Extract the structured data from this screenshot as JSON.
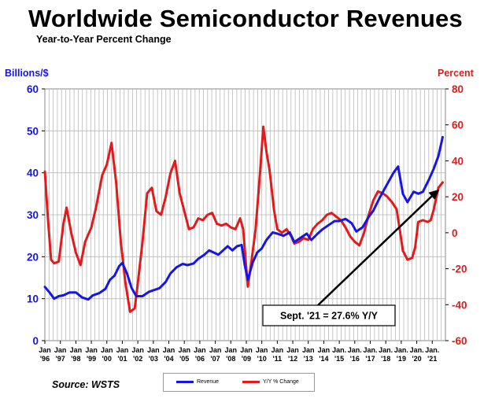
{
  "title": "Worldwide Semiconductor Revenues",
  "subtitle": "Year-to-Year Percent Change",
  "source": "Source: WSTS",
  "chart_data": {
    "type": "line",
    "title": "Worldwide Semiconductor Revenues",
    "subtitle": "Year-to-Year Percent Change",
    "y_left_label": "Billions/$",
    "y_right_label": "Percent",
    "y_left_range": [
      0,
      60
    ],
    "y_right_range": [
      -60,
      80
    ],
    "y_left_ticks": [
      "0",
      "10",
      "20",
      "30",
      "40",
      "50",
      "60"
    ],
    "y_right_ticks": [
      "-60",
      "-40",
      "-20",
      "0",
      "20",
      "40",
      "60",
      "80"
    ],
    "x_ticks": [
      [
        "Jan",
        "'96"
      ],
      [
        "Jan",
        "'97"
      ],
      [
        "Jan",
        "'98"
      ],
      [
        "Jan",
        "'99"
      ],
      [
        "Jan",
        "'00"
      ],
      [
        "Jan",
        "'01"
      ],
      [
        "Jan",
        "'02"
      ],
      [
        "Jan",
        "'03"
      ],
      [
        "Jan",
        "'04"
      ],
      [
        "Jan",
        "'05"
      ],
      [
        "Jan",
        "'06"
      ],
      [
        "Jan",
        "'07"
      ],
      [
        "Jan",
        "'08"
      ],
      [
        "Jan",
        "'09"
      ],
      [
        "Jan",
        "'10"
      ],
      [
        "Jan",
        "'11"
      ],
      [
        "Jan",
        "'12"
      ],
      [
        "Jan",
        "'13"
      ],
      [
        "Jan",
        "'14"
      ],
      [
        "Jan.",
        "'15"
      ],
      [
        "Jan.",
        "'16"
      ],
      [
        "Jan.",
        "'17"
      ],
      [
        "Jan.",
        "'18"
      ],
      [
        "Jan.",
        "'19"
      ],
      [
        "Jan.",
        "'20"
      ],
      [
        "Jan.",
        "'21"
      ]
    ],
    "grid": true,
    "legend_position": "bottom",
    "series": [
      {
        "name": "Revenue",
        "axis": "left",
        "color": "#1515e6",
        "points": [
          [
            1996.0,
            12.8
          ],
          [
            1996.3,
            11.5
          ],
          [
            1996.6,
            10.0
          ],
          [
            1996.9,
            10.6
          ],
          [
            1997.2,
            10.8
          ],
          [
            1997.6,
            11.5
          ],
          [
            1998.0,
            11.5
          ],
          [
            1998.4,
            10.3
          ],
          [
            1998.8,
            9.8
          ],
          [
            1999.1,
            10.8
          ],
          [
            1999.5,
            11.3
          ],
          [
            1999.9,
            12.3
          ],
          [
            2000.2,
            14.5
          ],
          [
            2000.5,
            15.5
          ],
          [
            2000.8,
            17.8
          ],
          [
            2001.0,
            18.5
          ],
          [
            2001.3,
            16.0
          ],
          [
            2001.6,
            12.5
          ],
          [
            2001.9,
            10.6
          ],
          [
            2002.3,
            10.6
          ],
          [
            2002.7,
            11.6
          ],
          [
            2003.0,
            12.0
          ],
          [
            2003.4,
            12.5
          ],
          [
            2003.8,
            14.0
          ],
          [
            2004.1,
            16.0
          ],
          [
            2004.5,
            17.5
          ],
          [
            2004.9,
            18.3
          ],
          [
            2005.2,
            18.0
          ],
          [
            2005.6,
            18.4
          ],
          [
            2005.9,
            19.5
          ],
          [
            2006.3,
            20.5
          ],
          [
            2006.6,
            21.5
          ],
          [
            2006.9,
            21.0
          ],
          [
            2007.2,
            20.5
          ],
          [
            2007.5,
            21.5
          ],
          [
            2007.8,
            22.5
          ],
          [
            2008.1,
            21.5
          ],
          [
            2008.4,
            22.5
          ],
          [
            2008.7,
            22.8
          ],
          [
            2008.9,
            18.0
          ],
          [
            2009.1,
            14.5
          ],
          [
            2009.4,
            18.5
          ],
          [
            2009.7,
            21.0
          ],
          [
            2010.0,
            22.0
          ],
          [
            2010.3,
            24.0
          ],
          [
            2010.7,
            25.8
          ],
          [
            2011.0,
            25.5
          ],
          [
            2011.4,
            25.0
          ],
          [
            2011.8,
            25.8
          ],
          [
            2012.1,
            23.5
          ],
          [
            2012.5,
            24.5
          ],
          [
            2012.9,
            25.5
          ],
          [
            2013.2,
            24.0
          ],
          [
            2013.6,
            25.5
          ],
          [
            2013.9,
            26.5
          ],
          [
            2014.3,
            27.5
          ],
          [
            2014.7,
            28.5
          ],
          [
            2015.0,
            28.5
          ],
          [
            2015.4,
            29.0
          ],
          [
            2015.8,
            28.0
          ],
          [
            2016.1,
            26.0
          ],
          [
            2016.5,
            27.0
          ],
          [
            2016.9,
            29.5
          ],
          [
            2017.2,
            31.0
          ],
          [
            2017.6,
            34.0
          ],
          [
            2017.9,
            36.0
          ],
          [
            2018.2,
            38.0
          ],
          [
            2018.5,
            40.0
          ],
          [
            2018.8,
            41.5
          ],
          [
            2019.1,
            35.0
          ],
          [
            2019.4,
            33.0
          ],
          [
            2019.8,
            35.5
          ],
          [
            2020.1,
            35.0
          ],
          [
            2020.4,
            35.5
          ],
          [
            2020.8,
            38.5
          ],
          [
            2021.1,
            41.0
          ],
          [
            2021.4,
            44.0
          ],
          [
            2021.67,
            48.5
          ]
        ]
      },
      {
        "name": "Y/Y % Change",
        "axis": "right",
        "color": "#e11b1b",
        "points": [
          [
            1996.0,
            34
          ],
          [
            1996.2,
            8
          ],
          [
            1996.4,
            -15
          ],
          [
            1996.6,
            -17
          ],
          [
            1996.9,
            -16
          ],
          [
            1997.2,
            5
          ],
          [
            1997.4,
            14
          ],
          [
            1997.7,
            0
          ],
          [
            1998.0,
            -11
          ],
          [
            1998.3,
            -18
          ],
          [
            1998.6,
            -5
          ],
          [
            1999.0,
            3
          ],
          [
            1999.3,
            14
          ],
          [
            1999.7,
            32
          ],
          [
            2000.0,
            38
          ],
          [
            2000.3,
            50
          ],
          [
            2000.6,
            28
          ],
          [
            2000.9,
            -5
          ],
          [
            2001.2,
            -28
          ],
          [
            2001.5,
            -44
          ],
          [
            2001.8,
            -42
          ],
          [
            2002.0,
            -28
          ],
          [
            2002.3,
            -5
          ],
          [
            2002.6,
            22
          ],
          [
            2002.9,
            25
          ],
          [
            2003.2,
            12
          ],
          [
            2003.5,
            10
          ],
          [
            2003.8,
            20
          ],
          [
            2004.1,
            33
          ],
          [
            2004.4,
            40
          ],
          [
            2004.7,
            22
          ],
          [
            2005.0,
            12
          ],
          [
            2005.3,
            2
          ],
          [
            2005.6,
            3
          ],
          [
            2005.9,
            8
          ],
          [
            2006.2,
            7
          ],
          [
            2006.5,
            10
          ],
          [
            2006.8,
            11
          ],
          [
            2007.1,
            5
          ],
          [
            2007.4,
            4
          ],
          [
            2007.7,
            5
          ],
          [
            2008.0,
            3
          ],
          [
            2008.3,
            2
          ],
          [
            2008.6,
            8
          ],
          [
            2008.8,
            2
          ],
          [
            2009.0,
            -20
          ],
          [
            2009.1,
            -30
          ],
          [
            2009.3,
            -18
          ],
          [
            2009.6,
            2
          ],
          [
            2009.9,
            35
          ],
          [
            2010.1,
            59
          ],
          [
            2010.3,
            45
          ],
          [
            2010.5,
            35
          ],
          [
            2010.8,
            12
          ],
          [
            2011.0,
            2
          ],
          [
            2011.3,
            0
          ],
          [
            2011.6,
            2
          ],
          [
            2011.9,
            -2
          ],
          [
            2012.1,
            -6
          ],
          [
            2012.4,
            -5
          ],
          [
            2012.7,
            -3
          ],
          [
            2013.0,
            -4
          ],
          [
            2013.3,
            2
          ],
          [
            2013.6,
            5
          ],
          [
            2013.9,
            7
          ],
          [
            2014.2,
            10
          ],
          [
            2014.5,
            11
          ],
          [
            2014.8,
            9
          ],
          [
            2015.1,
            7
          ],
          [
            2015.4,
            3
          ],
          [
            2015.7,
            -2
          ],
          [
            2016.0,
            -5
          ],
          [
            2016.3,
            -7
          ],
          [
            2016.6,
            0
          ],
          [
            2016.9,
            10
          ],
          [
            2017.2,
            18
          ],
          [
            2017.5,
            23
          ],
          [
            2017.8,
            22
          ],
          [
            2018.1,
            20
          ],
          [
            2018.4,
            17
          ],
          [
            2018.7,
            13
          ],
          [
            2018.9,
            2
          ],
          [
            2019.1,
            -10
          ],
          [
            2019.4,
            -15
          ],
          [
            2019.7,
            -14
          ],
          [
            2019.9,
            -8
          ],
          [
            2020.1,
            6
          ],
          [
            2020.4,
            7
          ],
          [
            2020.7,
            6
          ],
          [
            2020.9,
            7
          ],
          [
            2021.1,
            13
          ],
          [
            2021.4,
            25
          ],
          [
            2021.67,
            28
          ]
        ]
      }
    ],
    "annotation": {
      "text": "Sept. '21 = 27.6% Y/Y",
      "x": 2021.67,
      "y_right": 27.6
    }
  },
  "legend": [
    {
      "label": "Revenue",
      "color": "#1515e6"
    },
    {
      "label": "Y/Y % Change",
      "color": "#e11b1b"
    }
  ]
}
